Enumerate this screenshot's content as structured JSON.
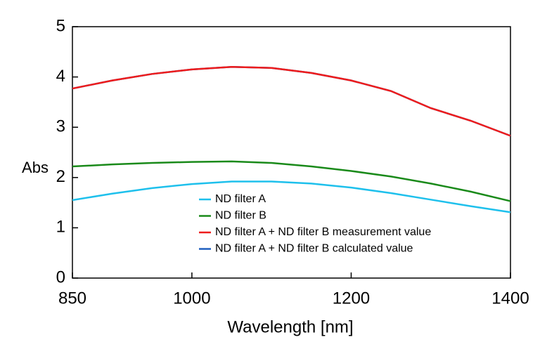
{
  "chart_data": {
    "type": "line",
    "x_label": "Wavelength [nm]",
    "y_label": "Abs",
    "x": [
      850,
      900,
      950,
      1000,
      1050,
      1100,
      1150,
      1200,
      1250,
      1300,
      1350,
      1400
    ],
    "series": [
      {
        "name": "ND filter A",
        "color": "#1ec0ec",
        "values": [
          1.55,
          1.68,
          1.79,
          1.87,
          1.92,
          1.92,
          1.88,
          1.8,
          1.69,
          1.56,
          1.43,
          1.31
        ]
      },
      {
        "name": "ND filter B",
        "color": "#1a8a1a",
        "values": [
          2.22,
          2.26,
          2.29,
          2.31,
          2.32,
          2.29,
          2.22,
          2.13,
          2.02,
          1.88,
          1.72,
          1.53
        ]
      },
      {
        "name": "ND filter A + ND filter B measurement value",
        "color": "#ee1c1c",
        "values": [
          3.77,
          3.93,
          4.06,
          4.15,
          4.2,
          4.18,
          4.08,
          3.93,
          3.72,
          3.38,
          3.13,
          2.83
        ]
      },
      {
        "name": "ND filter A + ND filter B calculated value",
        "color": "#1f5fbf",
        "values": [
          3.77,
          3.93,
          4.06,
          4.15,
          4.2,
          4.18,
          4.08,
          3.93,
          3.72,
          3.38,
          3.13,
          2.83
        ]
      }
    ],
    "xlim": [
      850,
      1400
    ],
    "ylim": [
      0,
      5
    ],
    "xticks": [
      850,
      1000,
      1200,
      1400
    ],
    "yticks": [
      0,
      1,
      2,
      3,
      4,
      5
    ]
  }
}
